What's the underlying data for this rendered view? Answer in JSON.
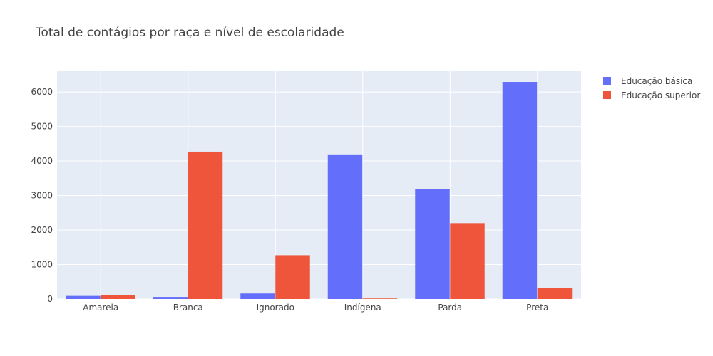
{
  "chart_data": {
    "type": "bar",
    "title": "Total de contágios por raça e nível de escolaridade",
    "categories": [
      "Amarela",
      "Branca",
      "Ignorado",
      "Indígena",
      "Parda",
      "Preta"
    ],
    "series": [
      {
        "name": "Educação básica",
        "color": "#636efa",
        "values": [
          90,
          60,
          160,
          4190,
          3190,
          6290
        ]
      },
      {
        "name": "Educação superior",
        "color": "#ef553b",
        "values": [
          110,
          4270,
          1270,
          15,
          2200,
          310
        ]
      }
    ],
    "yticks": [
      0,
      1000,
      2000,
      3000,
      4000,
      5000,
      6000
    ],
    "ylim": [
      0,
      6600
    ],
    "grid": true,
    "legend": "top-right"
  }
}
